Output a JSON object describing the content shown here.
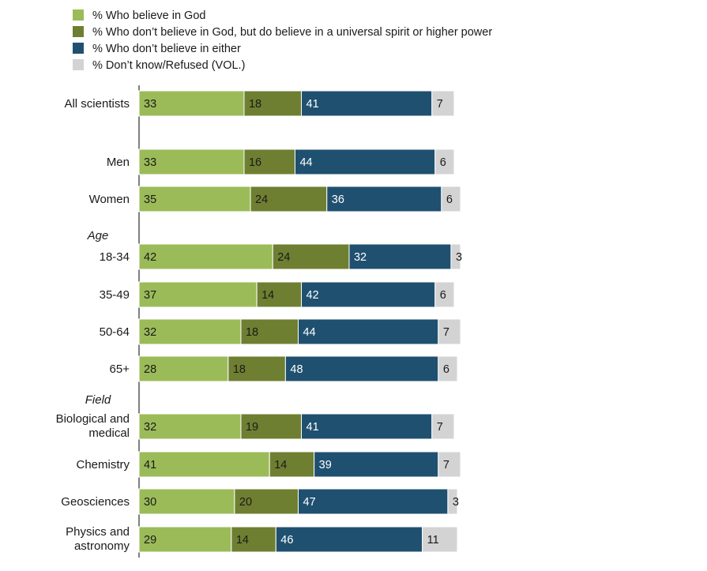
{
  "chart_data": {
    "type": "bar",
    "orientation": "horizontal",
    "stacked": true,
    "xlim": [
      0,
      100
    ],
    "legend_position": "top-left",
    "grid": false,
    "series": [
      {
        "name": "% Who believe in God",
        "color": "#9bbb59",
        "values": [
          33,
          33,
          35,
          42,
          37,
          32,
          28,
          32,
          41,
          30,
          29
        ]
      },
      {
        "name": "% Who don’t believe in God, but do believe in a universal spirit or higher power",
        "color": "#6e7f31",
        "values": [
          18,
          16,
          24,
          24,
          14,
          18,
          18,
          19,
          14,
          20,
          14
        ]
      },
      {
        "name": "% Who don’t believe in either",
        "color": "#1f5070",
        "values": [
          41,
          44,
          36,
          32,
          42,
          44,
          48,
          41,
          39,
          47,
          46
        ]
      },
      {
        "name": "% Don’t know/Refused (VOL.)",
        "color": "#d3d3d3",
        "values": [
          7,
          6,
          6,
          3,
          6,
          7,
          6,
          7,
          7,
          3,
          11
        ]
      }
    ],
    "categories": [
      [
        "All scientists"
      ],
      [
        "Men"
      ],
      [
        "Women"
      ],
      [
        "18-34"
      ],
      [
        "35-49"
      ],
      [
        "50-64"
      ],
      [
        "65+"
      ],
      [
        "Biological and",
        "medical"
      ],
      [
        "Chemistry"
      ],
      [
        "Geosciences"
      ],
      [
        "Physics and",
        "astronomy"
      ]
    ],
    "group_labels": [
      {
        "label": "Age",
        "before_index": 3
      },
      {
        "label": "Field",
        "before_index": 7
      }
    ]
  }
}
